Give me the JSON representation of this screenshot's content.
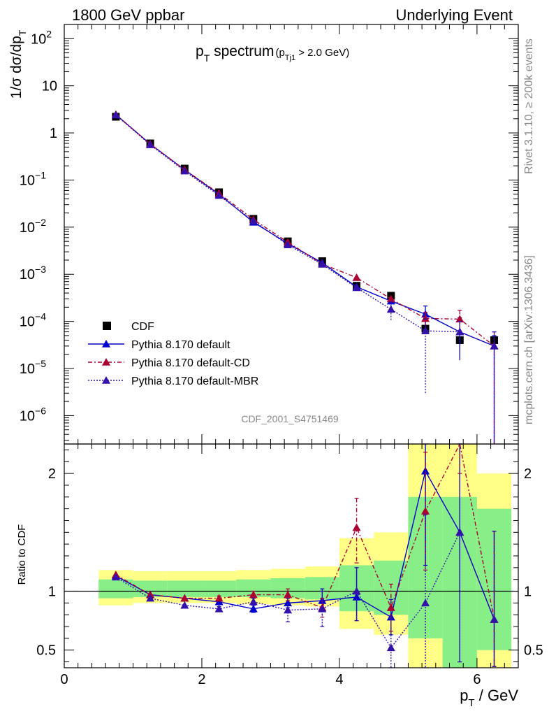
{
  "header": {
    "left": "1800 GeV ppbar",
    "right": "Underlying Event"
  },
  "side": {
    "version": "Rivet 3.1.10, ≥ 200k events",
    "source": "mcplots.cern.ch [arXiv:1306.3436]"
  },
  "chart_data": [
    {
      "type": "scatter",
      "title_main": "p",
      "title_sub": "T",
      "title_rest": " spectrum",
      "title_cut_open": "(p",
      "title_cut_sub": "Tj1",
      "title_cut_close": " > 2.0 GeV)",
      "analysis_label": "CDF_2001_S4751469",
      "ylabel": "1/σ dσ/dp",
      "ylabel_sub": "T",
      "yscale": "log",
      "ylim": [
        2.5e-07,
        200
      ],
      "xlim": [
        0,
        6.6
      ],
      "ytick_labels": [
        {
          "value": 100,
          "mant": "10",
          "exp": "2"
        },
        {
          "value": 10,
          "mant": "10",
          "exp": ""
        },
        {
          "value": 1,
          "mant": "1",
          "exp": ""
        },
        {
          "value": 0.1,
          "mant": "10",
          "exp": "−1"
        },
        {
          "value": 0.01,
          "mant": "10",
          "exp": "−2"
        },
        {
          "value": 0.001,
          "mant": "10",
          "exp": "−3"
        },
        {
          "value": 0.0001,
          "mant": "10",
          "exp": "−4"
        },
        {
          "value": 1e-05,
          "mant": "10",
          "exp": "−5"
        },
        {
          "value": 1e-06,
          "mant": "10",
          "exp": "−6"
        }
      ],
      "legend": [
        {
          "label": "CDF",
          "marker": "square",
          "color": "#000000",
          "dash": ""
        },
        {
          "label": "Pythia 8.170 default",
          "marker": "triangle",
          "color": "#0000cc",
          "dash": ""
        },
        {
          "label": "Pythia 8.170 default-CD",
          "marker": "triangle",
          "color": "#aa0033",
          "dash": "6,3,2,3"
        },
        {
          "label": "Pythia 8.170 default-MBR",
          "marker": "triangle",
          "color": "#3311aa",
          "dash": "2,2"
        }
      ],
      "x": [
        0.75,
        1.25,
        1.75,
        2.25,
        2.75,
        3.25,
        3.75,
        4.25,
        4.75,
        5.25,
        5.75,
        6.25
      ],
      "data": {
        "name": "CDF",
        "values": [
          2.2,
          0.6,
          0.175,
          0.055,
          0.015,
          0.005,
          0.0019,
          0.00057,
          0.00035,
          7e-05,
          4e-05,
          4e-05
        ]
      },
      "series": [
        {
          "name": "Pythia 8.170 default",
          "color": "#0000cc",
          "dash": "",
          "values": [
            2.45,
            0.58,
            0.165,
            0.05,
            0.0127,
            0.0045,
            0.00175,
            0.00054,
            0.00027,
            0.000142,
            6e-05,
            3e-05
          ],
          "err_lo": [
            0,
            0,
            0,
            0,
            0,
            0,
            0,
            0,
            0,
            8e-05,
            4.5e-05,
            3e-05
          ],
          "err_hi": [
            0,
            0,
            0,
            0,
            0,
            0,
            0,
            0,
            0,
            7e-05,
            6e-05,
            2e-05
          ]
        },
        {
          "name": "Pythia 8.170 default-CD",
          "color": "#aa0033",
          "dash": "6,3,2,3",
          "values": [
            2.45,
            0.58,
            0.165,
            0.052,
            0.0145,
            0.0048,
            0.00165,
            0.00085,
            0.0003,
            0.000115,
            0.000112,
            3e-05
          ],
          "err_lo": [
            0,
            0,
            0,
            0,
            0,
            0,
            0,
            0,
            0,
            4e-05,
            4e-05,
            3e-05
          ],
          "err_hi": [
            0,
            0,
            0,
            0,
            0,
            0,
            0,
            0,
            0,
            4e-05,
            6e-05,
            3e-05
          ]
        },
        {
          "name": "Pythia 8.170 default-MBR",
          "color": "#3311aa",
          "dash": "2,2",
          "values": [
            2.4,
            0.56,
            0.155,
            0.047,
            0.0136,
            0.0042,
            0.00163,
            0.00052,
            0.00018,
            6.3e-05,
            6e-05,
            3e-05
          ],
          "err_lo": [
            0,
            0,
            0,
            0,
            0,
            0,
            0,
            0,
            8e-05,
            6e-05,
            4e-05,
            3e-05
          ],
          "err_hi": [
            0,
            0,
            0,
            0,
            0,
            0,
            0,
            0,
            8e-05,
            5e-05,
            4e-05,
            3e-05
          ]
        }
      ]
    },
    {
      "type": "line",
      "ylabel": "Ratio to CDF",
      "xlabel": "p",
      "xlabel_sub": "T",
      "xlabel_rest": " / GeV",
      "ylim": [
        0.35,
        2.25
      ],
      "xlim": [
        0,
        6.6
      ],
      "xticks": [
        0,
        2,
        4,
        6
      ],
      "yticks": [
        0.5,
        1,
        2
      ],
      "bins": [
        [
          0.5,
          1.0
        ],
        [
          1.0,
          1.5
        ],
        [
          1.5,
          2.0
        ],
        [
          2.0,
          2.5
        ],
        [
          2.5,
          3.0
        ],
        [
          3.0,
          3.5
        ],
        [
          3.5,
          4.0
        ],
        [
          4.0,
          4.5
        ],
        [
          4.5,
          5.0
        ],
        [
          5.0,
          5.5
        ],
        [
          5.5,
          6.0
        ],
        [
          6.0,
          6.5
        ]
      ],
      "band_yellow": [
        [
          0.88,
          1.18
        ],
        [
          0.9,
          1.17
        ],
        [
          0.9,
          1.17
        ],
        [
          0.9,
          1.17
        ],
        [
          0.89,
          1.18
        ],
        [
          0.88,
          1.19
        ],
        [
          0.87,
          1.21
        ],
        [
          0.68,
          1.45
        ],
        [
          0.63,
          1.5
        ],
        [
          0.35,
          2.25
        ],
        [
          0.35,
          2.25
        ],
        [
          0.35,
          2.0
        ]
      ],
      "band_green": [
        [
          0.94,
          1.1
        ],
        [
          0.95,
          1.09
        ],
        [
          0.95,
          1.09
        ],
        [
          0.95,
          1.09
        ],
        [
          0.95,
          1.1
        ],
        [
          0.94,
          1.11
        ],
        [
          0.93,
          1.12
        ],
        [
          0.83,
          1.22
        ],
        [
          0.8,
          1.26
        ],
        [
          0.6,
          1.8
        ],
        [
          0.35,
          1.8
        ],
        [
          0.5,
          1.7
        ]
      ],
      "series": [
        {
          "name": "Pythia 8.170 default",
          "color": "#0000cc",
          "dash": "",
          "values": [
            1.13,
            0.97,
            0.94,
            0.91,
            0.85,
            0.9,
            0.92,
            0.95,
            0.78,
            2.02,
            1.5,
            0.76
          ],
          "err_lo": [
            0,
            0,
            0,
            0.02,
            0.03,
            0.04,
            0.08,
            0.2,
            0.15,
            0.8,
            1.1,
            0.4
          ],
          "err_hi": [
            0,
            0,
            0,
            0.02,
            0.03,
            0.04,
            0.1,
            0.25,
            0.15,
            0.25,
            0.75,
            0.75
          ]
        },
        {
          "name": "Pythia 8.170 default-CD",
          "color": "#aa0033",
          "dash": "6,3,2,3",
          "values": [
            1.14,
            0.97,
            0.94,
            0.94,
            0.97,
            0.97,
            0.86,
            1.54,
            0.86,
            1.68,
            2.6,
            0.76
          ],
          "err_lo": [
            0,
            0,
            0,
            0.02,
            0.03,
            0.05,
            0.08,
            0.3,
            0.2,
            0.5,
            0.6,
            0.4
          ],
          "err_hi": [
            0,
            0,
            0,
            0.02,
            0.03,
            0.05,
            0.08,
            0.25,
            0.2,
            0.5,
            0.6,
            0.75
          ]
        },
        {
          "name": "Pythia 8.170 default-MBR",
          "color": "#3311aa",
          "dash": "2,2",
          "values": [
            1.12,
            0.94,
            0.88,
            0.85,
            0.91,
            0.84,
            0.85,
            1.0,
            0.52,
            0.9,
            1.5,
            0.76
          ],
          "err_lo": [
            0,
            0,
            0,
            0.02,
            0.03,
            0.1,
            0.15,
            0.25,
            0.25,
            0.55,
            1.1,
            0.4
          ],
          "err_hi": [
            0,
            0,
            0,
            0.02,
            0.03,
            0.1,
            0.15,
            0.2,
            0.25,
            0.75,
            0.75,
            0.75
          ]
        }
      ]
    }
  ]
}
